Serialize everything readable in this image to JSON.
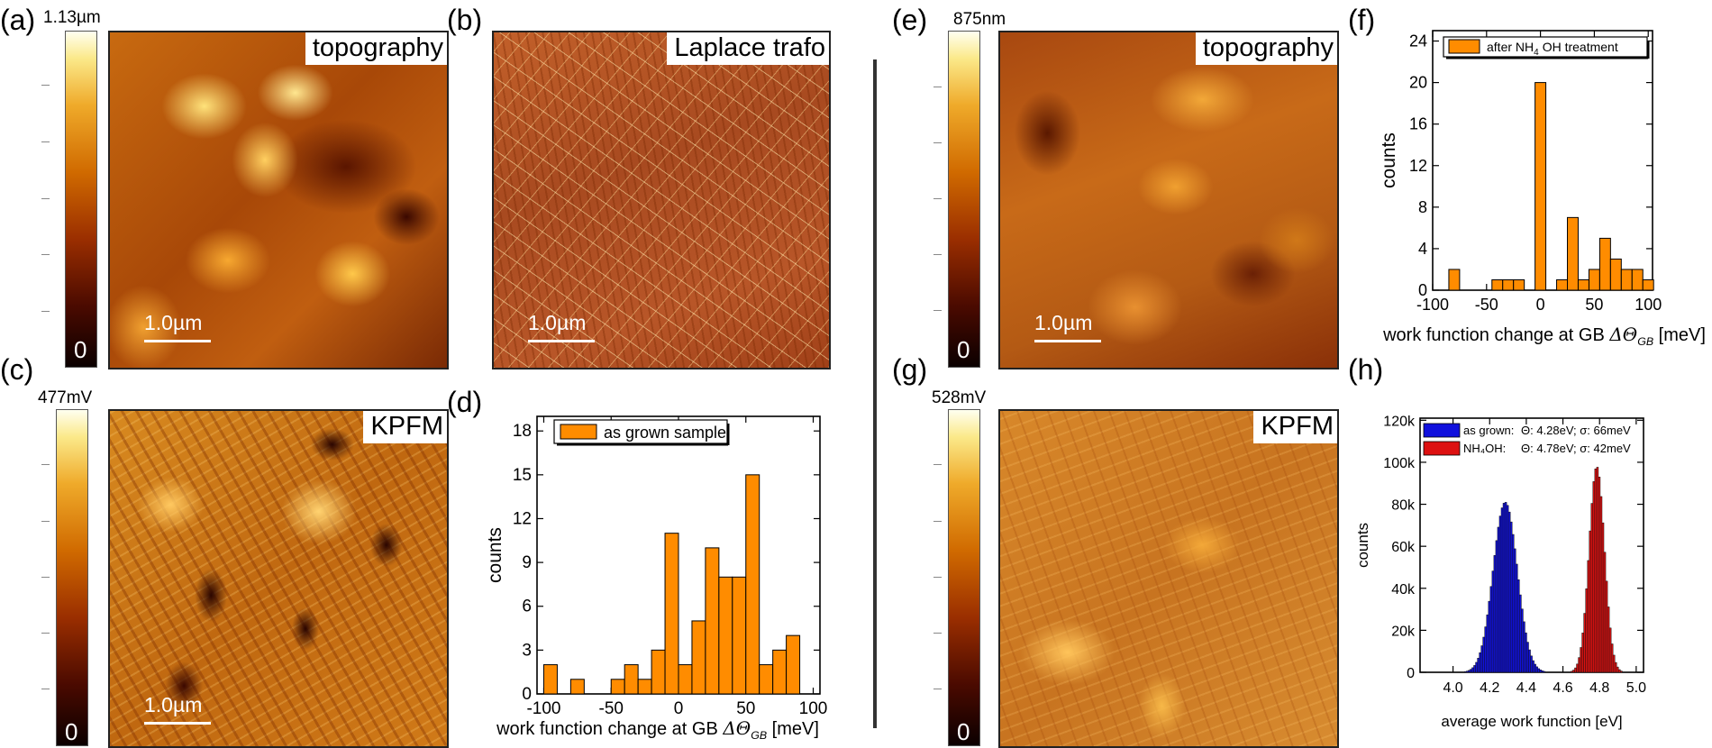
{
  "panels": {
    "a": {
      "label": "(a)",
      "scale_max": "1.13µm",
      "scale_min": "0",
      "title": "topography",
      "scalebar": "1.0µm"
    },
    "b": {
      "label": "(b)",
      "title": "Laplace trafo",
      "scalebar": "1.0µm"
    },
    "c": {
      "label": "(c)",
      "scale_max": "477mV",
      "scale_min": "0",
      "title": "KPFM",
      "scalebar": "1.0µm"
    },
    "d": {
      "label": "(d)"
    },
    "e": {
      "label": "(e)",
      "scale_max": "875nm",
      "scale_min": "0",
      "title": "topography",
      "scalebar": "1.0µm"
    },
    "f": {
      "label": "(f)"
    },
    "g": {
      "label": "(g)",
      "scale_max": "528mV",
      "scale_min": "0",
      "title": "KPFM"
    },
    "h": {
      "label": "(h)"
    }
  },
  "colors": {
    "orange_bar": "#ff8c00",
    "as_grown_blue": "#1111dd",
    "nh4oh_red": "#dd1111"
  },
  "chart_data": [
    {
      "id": "d",
      "type": "bar",
      "title": "",
      "xlabel": "work function change at GB",
      "xlabel_symbol": "ΔΘ",
      "xlabel_sub": "GB",
      "xlabel_unit": "[meV]",
      "ylabel": "counts",
      "xlim": [
        -105,
        105
      ],
      "ylim": [
        0,
        19
      ],
      "xticks": [
        -100,
        -50,
        0,
        50,
        100
      ],
      "yticks": [
        0,
        3,
        6,
        9,
        12,
        15,
        18
      ],
      "legend": {
        "label": "as grown sample",
        "position": "top-left"
      },
      "bin_width": 10,
      "bins": [
        {
          "x": -95,
          "count": 2
        },
        {
          "x": -85,
          "count": 0
        },
        {
          "x": -75,
          "count": 1
        },
        {
          "x": -65,
          "count": 0
        },
        {
          "x": -55,
          "count": 0
        },
        {
          "x": -45,
          "count": 1
        },
        {
          "x": -35,
          "count": 2
        },
        {
          "x": -25,
          "count": 1
        },
        {
          "x": -15,
          "count": 3
        },
        {
          "x": -5,
          "count": 11
        },
        {
          "x": 5,
          "count": 2
        },
        {
          "x": 15,
          "count": 5
        },
        {
          "x": 25,
          "count": 10
        },
        {
          "x": 35,
          "count": 8
        },
        {
          "x": 45,
          "count": 8
        },
        {
          "x": 55,
          "count": 15
        },
        {
          "x": 65,
          "count": 2
        },
        {
          "x": 75,
          "count": 3
        },
        {
          "x": 85,
          "count": 4
        }
      ]
    },
    {
      "id": "f",
      "type": "bar",
      "title": "",
      "xlabel": "work function change at GB",
      "xlabel_symbol": "ΔΘ",
      "xlabel_sub": "GB",
      "xlabel_unit": "[meV]",
      "ylabel": "counts",
      "xlim": [
        -100,
        104
      ],
      "ylim": [
        0,
        25
      ],
      "xticks": [
        -100,
        -50,
        0,
        50,
        100
      ],
      "yticks": [
        0,
        4,
        8,
        12,
        16,
        20,
        24
      ],
      "legend": {
        "label": "after NH",
        "label_sub": "4",
        "label_rest": "OH treatment",
        "position": "top-center"
      },
      "bin_width": 10,
      "bins": [
        {
          "x": -80,
          "count": 2
        },
        {
          "x": -40,
          "count": 1
        },
        {
          "x": -30,
          "count": 1
        },
        {
          "x": -20,
          "count": 1
        },
        {
          "x": 0,
          "count": 20
        },
        {
          "x": 30,
          "count": 7
        },
        {
          "x": 20,
          "count": 1
        },
        {
          "x": 50,
          "count": 2
        },
        {
          "x": 60,
          "count": 5
        },
        {
          "x": 70,
          "count": 3
        },
        {
          "x": 80,
          "count": 2
        },
        {
          "x": 90,
          "count": 2
        },
        {
          "x": 100,
          "count": 1
        },
        {
          "x": 40,
          "count": 1
        }
      ]
    },
    {
      "id": "h",
      "type": "bar",
      "title": "",
      "xlabel": "average work function [eV]",
      "ylabel": "counts",
      "xlim": [
        3.82,
        5.04
      ],
      "ylim": [
        0,
        121000
      ],
      "xticks": [
        4.0,
        4.2,
        4.4,
        4.6,
        4.8,
        5.0
      ],
      "xtick_labels": [
        "4.0",
        "4.2",
        "4.4",
        "4.6",
        "4.8",
        "5.0"
      ],
      "yticks": [
        0,
        20000,
        40000,
        60000,
        80000,
        100000,
        120000
      ],
      "ytick_labels": [
        "0",
        "20k",
        "40k",
        "60k",
        "80k",
        "100k",
        "120k"
      ],
      "legend_position": "top-left",
      "series": [
        {
          "name": "as grown:",
          "stats": "Θ: 4.28eV; σ: 66meV",
          "mean": 4.28,
          "sigma": 0.066,
          "peak": 81000,
          "color": "#1111dd"
        },
        {
          "name": "NH₄OH:",
          "stats": "Θ: 4.78eV; σ: 42meV",
          "mean": 4.78,
          "sigma": 0.042,
          "peak": 98000,
          "color": "#dd1111"
        }
      ]
    }
  ]
}
